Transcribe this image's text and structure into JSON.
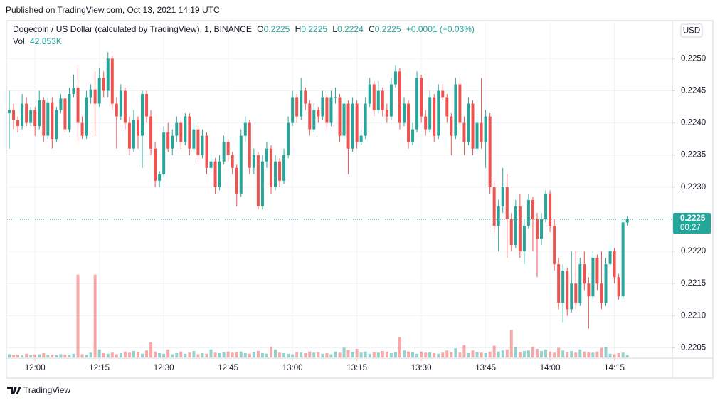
{
  "header": {
    "published": "Published on TradingView.com, Oct 13, 2021 14:19 UTC"
  },
  "chart_data": {
    "type": "candlestick",
    "title": "Dogecoin / US Dollar (calculated by TradingView), 1, BINANCE",
    "ohlc": {
      "o_label": "O",
      "o": 0.2225,
      "h_label": "H",
      "h": 0.2225,
      "l_label": "L",
      "l": 0.2224,
      "c_label": "C",
      "c": 0.2225,
      "change": "+0.0001 (+0.03%)"
    },
    "volume_label": "Vol",
    "volume_value": "42.853K",
    "currency": "USD",
    "last_price": 0.2225,
    "countdown": "00:27",
    "up_color": "#26a69a",
    "down_color": "#ef5350",
    "grid": true,
    "ylim": [
      0.22035,
      0.22558
    ],
    "yticks": [
      0.2205,
      {
        "value": 0.221,
        "label": "0.2210"
      },
      0.2215,
      {
        "value": 0.222,
        "label": "0.2220"
      },
      0.2225,
      {
        "value": 0.223,
        "label": "0.2230"
      },
      0.2235,
      {
        "value": 0.224,
        "label": "0.2240"
      },
      0.2245,
      {
        "value": 0.225,
        "label": "0.2250"
      }
    ],
    "xlim": [
      -0.5,
      154.5
    ],
    "xticks": [
      {
        "value": 6,
        "label": "12:00"
      },
      {
        "value": 21,
        "label": "12:15"
      },
      {
        "value": 36,
        "label": "12:30"
      },
      {
        "value": 51,
        "label": "12:45"
      },
      {
        "value": 66,
        "label": "13:00"
      },
      {
        "value": 81,
        "label": "13:15"
      },
      {
        "value": 96,
        "label": "13:30"
      },
      {
        "value": 111,
        "label": "13:45"
      },
      {
        "value": 126,
        "label": "14:00"
      },
      {
        "value": 141,
        "label": "14:15"
      }
    ],
    "vlim": [
      0,
      2000000
    ],
    "candles": [
      [
        0.22415,
        0.2245,
        0.2236,
        0.2242
      ],
      [
        0.2242,
        0.2243,
        0.2239,
        0.22405
      ],
      [
        0.22405,
        0.2241,
        0.22385,
        0.22395
      ],
      [
        0.22395,
        0.22445,
        0.2239,
        0.2243
      ],
      [
        0.2243,
        0.2244,
        0.22395,
        0.224
      ],
      [
        0.224,
        0.22425,
        0.22395,
        0.2242
      ],
      [
        0.2242,
        0.22425,
        0.2238,
        0.22395
      ],
      [
        0.22395,
        0.2245,
        0.2239,
        0.22435
      ],
      [
        0.22435,
        0.2244,
        0.2237,
        0.2238
      ],
      [
        0.2238,
        0.2244,
        0.22375,
        0.22432
      ],
      [
        0.22432,
        0.2244,
        0.2236,
        0.22375
      ],
      [
        0.22375,
        0.22425,
        0.2237,
        0.2242
      ],
      [
        0.2242,
        0.22445,
        0.22415,
        0.22438
      ],
      [
        0.22438,
        0.2244,
        0.22385,
        0.2239
      ],
      [
        0.2239,
        0.22455,
        0.22385,
        0.22445
      ],
      [
        0.22445,
        0.22475,
        0.2244,
        0.22455
      ],
      [
        0.22455,
        0.2249,
        0.2237,
        0.224
      ],
      [
        0.224,
        0.2241,
        0.22375,
        0.2238
      ],
      [
        0.2238,
        0.2245,
        0.22375,
        0.2244
      ],
      [
        0.2244,
        0.2246,
        0.2243,
        0.22452
      ],
      [
        0.22452,
        0.2248,
        0.2238,
        0.2243
      ],
      [
        0.2243,
        0.22485,
        0.22425,
        0.2247
      ],
      [
        0.2247,
        0.2248,
        0.2244,
        0.2245
      ],
      [
        0.2245,
        0.2251,
        0.2244,
        0.225
      ],
      [
        0.225,
        0.22505,
        0.2242,
        0.2243
      ],
      [
        0.2243,
        0.2244,
        0.2236,
        0.2241
      ],
      [
        0.2241,
        0.2246,
        0.22405,
        0.2245
      ],
      [
        0.2245,
        0.22455,
        0.2239,
        0.224
      ],
      [
        0.224,
        0.2241,
        0.2235,
        0.2236
      ],
      [
        0.2236,
        0.2242,
        0.22355,
        0.22405
      ],
      [
        0.22405,
        0.2241,
        0.2236,
        0.2238
      ],
      [
        0.2238,
        0.2245,
        0.2233,
        0.22445
      ],
      [
        0.22445,
        0.2245,
        0.224,
        0.2241
      ],
      [
        0.2241,
        0.2242,
        0.2235,
        0.2236
      ],
      [
        0.2236,
        0.2237,
        0.223,
        0.2231
      ],
      [
        0.2231,
        0.22325,
        0.223,
        0.2232
      ],
      [
        0.2232,
        0.22395,
        0.22315,
        0.22385
      ],
      [
        0.22385,
        0.224,
        0.22355,
        0.2236
      ],
      [
        0.2236,
        0.2239,
        0.2235,
        0.2238
      ],
      [
        0.2238,
        0.2241,
        0.2237,
        0.224
      ],
      [
        0.224,
        0.22405,
        0.2236,
        0.2237
      ],
      [
        0.2237,
        0.22415,
        0.22365,
        0.2241
      ],
      [
        0.2241,
        0.22415,
        0.2235,
        0.2236
      ],
      [
        0.2236,
        0.224,
        0.22355,
        0.2239
      ],
      [
        0.2239,
        0.22395,
        0.2234,
        0.2235
      ],
      [
        0.2235,
        0.2239,
        0.22345,
        0.2238
      ],
      [
        0.2238,
        0.22385,
        0.2232,
        0.2233
      ],
      [
        0.2233,
        0.2235,
        0.22325,
        0.2234
      ],
      [
        0.2234,
        0.22345,
        0.2229,
        0.223
      ],
      [
        0.223,
        0.2235,
        0.22295,
        0.2234
      ],
      [
        0.2234,
        0.2238,
        0.22335,
        0.2237
      ],
      [
        0.2237,
        0.22375,
        0.2234,
        0.2235
      ],
      [
        0.2235,
        0.22355,
        0.2232,
        0.2233
      ],
      [
        0.2233,
        0.22335,
        0.2227,
        0.2229
      ],
      [
        0.2229,
        0.2239,
        0.22285,
        0.2238
      ],
      [
        0.2238,
        0.2241,
        0.2237,
        0.224
      ],
      [
        0.224,
        0.22405,
        0.2232,
        0.2233
      ],
      [
        0.2233,
        0.2236,
        0.2232,
        0.2235
      ],
      [
        0.2235,
        0.22355,
        0.22265,
        0.2227
      ],
      [
        0.2227,
        0.2235,
        0.22265,
        0.2234
      ],
      [
        0.2234,
        0.2237,
        0.2233,
        0.2236
      ],
      [
        0.2236,
        0.22365,
        0.2229,
        0.223
      ],
      [
        0.223,
        0.2235,
        0.22295,
        0.2234
      ],
      [
        0.2234,
        0.22345,
        0.223,
        0.2231
      ],
      [
        0.2231,
        0.2236,
        0.22305,
        0.2235
      ],
      [
        0.2235,
        0.2241,
        0.22345,
        0.224
      ],
      [
        0.224,
        0.2245,
        0.22395,
        0.2244
      ],
      [
        0.2244,
        0.22445,
        0.224,
        0.2241
      ],
      [
        0.2241,
        0.2247,
        0.22405,
        0.2245
      ],
      [
        0.2245,
        0.22455,
        0.2242,
        0.2243
      ],
      [
        0.2243,
        0.22435,
        0.2238,
        0.2239
      ],
      [
        0.2239,
        0.2243,
        0.22385,
        0.2242
      ],
      [
        0.2242,
        0.22425,
        0.224,
        0.2241
      ],
      [
        0.2241,
        0.2245,
        0.22405,
        0.2244
      ],
      [
        0.2244,
        0.22445,
        0.2239,
        0.224
      ],
      [
        0.224,
        0.2245,
        0.22395,
        0.2244
      ],
      [
        0.2244,
        0.22455,
        0.2243,
        0.2244
      ],
      [
        0.2244,
        0.22445,
        0.2237,
        0.2238
      ],
      [
        0.2238,
        0.2244,
        0.22375,
        0.2243
      ],
      [
        0.2243,
        0.22435,
        0.2232,
        0.2236
      ],
      [
        0.2236,
        0.2244,
        0.22355,
        0.2243
      ],
      [
        0.2243,
        0.22435,
        0.2236,
        0.2237
      ],
      [
        0.2237,
        0.2239,
        0.22365,
        0.2238
      ],
      [
        0.2238,
        0.2244,
        0.22375,
        0.2243
      ],
      [
        0.2243,
        0.2247,
        0.22425,
        0.2246
      ],
      [
        0.2246,
        0.22465,
        0.2241,
        0.2242
      ],
      [
        0.2242,
        0.22465,
        0.22415,
        0.2245
      ],
      [
        0.2245,
        0.22455,
        0.2241,
        0.2242
      ],
      [
        0.2242,
        0.2243,
        0.224,
        0.2241
      ],
      [
        0.2241,
        0.2247,
        0.22405,
        0.2246
      ],
      [
        0.2246,
        0.2249,
        0.22455,
        0.2248
      ],
      [
        0.2248,
        0.22485,
        0.2239,
        0.224
      ],
      [
        0.224,
        0.2244,
        0.22395,
        0.2243
      ],
      [
        0.2243,
        0.22435,
        0.2236,
        0.2237
      ],
      [
        0.2237,
        0.224,
        0.22365,
        0.2239
      ],
      [
        0.2239,
        0.2248,
        0.22385,
        0.2247
      ],
      [
        0.2247,
        0.22475,
        0.224,
        0.2241
      ],
      [
        0.2241,
        0.2242,
        0.2238,
        0.2239
      ],
      [
        0.2239,
        0.2245,
        0.22385,
        0.2244
      ],
      [
        0.2244,
        0.22445,
        0.2237,
        0.2238
      ],
      [
        0.2238,
        0.2246,
        0.22375,
        0.2245
      ],
      [
        0.2245,
        0.2246,
        0.22435,
        0.2244
      ],
      [
        0.2244,
        0.22445,
        0.224,
        0.2241
      ],
      [
        0.2241,
        0.22415,
        0.2235,
        0.2238
      ],
      [
        0.2238,
        0.2247,
        0.22375,
        0.2246
      ],
      [
        0.2246,
        0.22465,
        0.2239,
        0.224
      ],
      [
        0.224,
        0.2241,
        0.2235,
        0.2237
      ],
      [
        0.2237,
        0.2244,
        0.22365,
        0.2243
      ],
      [
        0.2243,
        0.22435,
        0.2235,
        0.2236
      ],
      [
        0.2236,
        0.2241,
        0.22355,
        0.224
      ],
      [
        0.224,
        0.2247,
        0.2236,
        0.2237
      ],
      [
        0.2237,
        0.2242,
        0.2233,
        0.2241
      ],
      [
        0.2241,
        0.22415,
        0.2229,
        0.223
      ],
      [
        0.223,
        0.2231,
        0.2223,
        0.2224
      ],
      [
        0.2224,
        0.2228,
        0.222,
        0.2227
      ],
      [
        0.2227,
        0.2233,
        0.2226,
        0.223
      ],
      [
        0.223,
        0.2232,
        0.2219,
        0.2225
      ],
      [
        0.2225,
        0.2226,
        0.222,
        0.2221
      ],
      [
        0.2221,
        0.2228,
        0.22205,
        0.2227
      ],
      [
        0.2227,
        0.2229,
        0.2219,
        0.222
      ],
      [
        0.222,
        0.2225,
        0.2218,
        0.2224
      ],
      [
        0.2224,
        0.2229,
        0.22235,
        0.2228
      ],
      [
        0.2228,
        0.22285,
        0.222,
        0.2225
      ],
      [
        0.2225,
        0.2226,
        0.2216,
        0.2222
      ],
      [
        0.2222,
        0.2226,
        0.2221,
        0.2225
      ],
      [
        0.2225,
        0.22295,
        0.22245,
        0.2229
      ],
      [
        0.2229,
        0.22295,
        0.2223,
        0.2224
      ],
      [
        0.2224,
        0.2225,
        0.2217,
        0.2218
      ],
      [
        0.2218,
        0.2219,
        0.2211,
        0.2212
      ],
      [
        0.2212,
        0.2218,
        0.2209,
        0.2217
      ],
      [
        0.2217,
        0.22175,
        0.221,
        0.2211
      ],
      [
        0.2211,
        0.222,
        0.22105,
        0.2215
      ],
      [
        0.2215,
        0.222,
        0.2211,
        0.2212
      ],
      [
        0.2212,
        0.2219,
        0.22115,
        0.2218
      ],
      [
        0.2218,
        0.222,
        0.2214,
        0.2215
      ],
      [
        0.2215,
        0.2216,
        0.2208,
        0.2213
      ],
      [
        0.2213,
        0.222,
        0.22125,
        0.2219
      ],
      [
        0.2219,
        0.22195,
        0.2214,
        0.2215
      ],
      [
        0.2215,
        0.222,
        0.2211,
        0.2212
      ],
      [
        0.2212,
        0.2219,
        0.22115,
        0.2218
      ],
      [
        0.2218,
        0.2221,
        0.22175,
        0.222
      ],
      [
        0.222,
        0.22205,
        0.2215,
        0.2216
      ],
      [
        0.2216,
        0.22165,
        0.22125,
        0.2213
      ],
      [
        0.2213,
        0.2225,
        0.22125,
        0.22245
      ],
      [
        0.22245,
        0.22255,
        0.2224,
        0.2225
      ]
    ],
    "volume": [
      60000,
      40000,
      50000,
      45000,
      70000,
      40000,
      55000,
      60000,
      80000,
      50000,
      45000,
      40000,
      60000,
      55000,
      50000,
      70000,
      1550000,
      60000,
      50000,
      90000,
      1550000,
      150000,
      80000,
      70000,
      90000,
      60000,
      80000,
      110000,
      90000,
      120000,
      100000,
      70000,
      130000,
      280000,
      110000,
      80000,
      70000,
      150000,
      60000,
      80000,
      110000,
      70000,
      90000,
      120000,
      60000,
      80000,
      70000,
      150000,
      90000,
      80000,
      100000,
      110000,
      90000,
      100000,
      110000,
      80000,
      70000,
      100000,
      120000,
      80000,
      70000,
      200000,
      150000,
      90000,
      80000,
      70000,
      60000,
      100000,
      90000,
      80000,
      110000,
      90000,
      100000,
      70000,
      80000,
      60000,
      110000,
      90000,
      180000,
      140000,
      100000,
      160000,
      90000,
      110000,
      70000,
      100000,
      90000,
      120000,
      110000,
      80000,
      100000,
      380000,
      130000,
      110000,
      100000,
      70000,
      110000,
      90000,
      100000,
      80000,
      70000,
      90000,
      130000,
      100000,
      170000,
      90000,
      230000,
      80000,
      130000,
      100000,
      90000,
      80000,
      110000,
      220000,
      110000,
      130000,
      150000,
      520000,
      190000,
      100000,
      120000,
      130000,
      200000,
      160000,
      120000,
      150000,
      110000,
      90000,
      180000,
      130000,
      100000,
      120000,
      90000,
      150000,
      110000,
      100000,
      90000,
      110000,
      180000,
      200000,
      70000,
      60000,
      80000,
      90000,
      42853
    ]
  },
  "footer": {
    "brand": "TradingView"
  }
}
